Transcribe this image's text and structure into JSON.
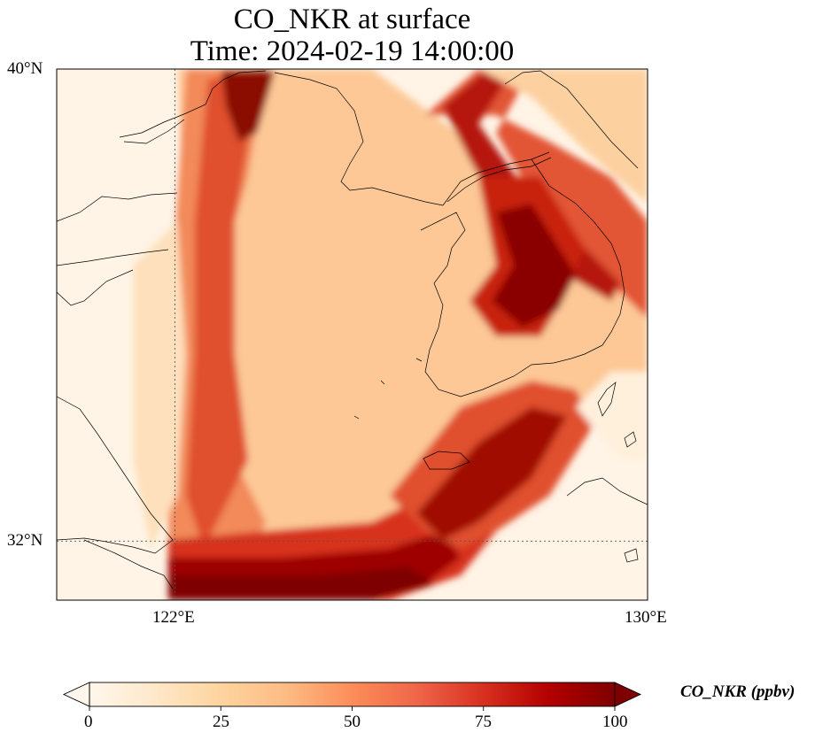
{
  "title": {
    "line1": "CO_NKR at surface",
    "line2": "Time: 2024-02-19 14:00:00"
  },
  "map": {
    "variable": "CO_NKR",
    "lon_range": [
      119.5,
      130
    ],
    "lat_range": [
      31,
      40
    ],
    "lat_ticks": [
      {
        "value": 40,
        "label": "40°N"
      },
      {
        "value": 32,
        "label": "32°N"
      }
    ],
    "lon_ticks": [
      {
        "value": 122,
        "label": "122°E"
      },
      {
        "value": 130,
        "label": "130°E"
      }
    ],
    "colormap": "OrRd"
  },
  "colorbar": {
    "label": "CO_NKR (ppbv)",
    "min": 0,
    "max": 100,
    "extend": "both",
    "ticks": [
      {
        "value": 0,
        "label": "0"
      },
      {
        "value": 25,
        "label": "25"
      },
      {
        "value": 50,
        "label": "50"
      },
      {
        "value": 75,
        "label": "75"
      },
      {
        "value": 100,
        "label": "100"
      }
    ]
  }
}
